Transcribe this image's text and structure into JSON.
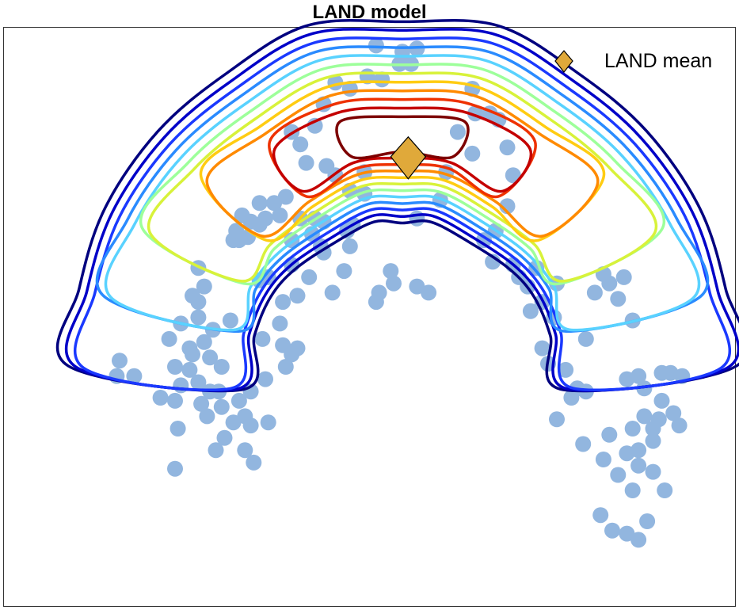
{
  "chart_data": {
    "type": "scatter",
    "title": "LAND model",
    "xlabel": "",
    "ylabel": "",
    "grid": false,
    "legend_position": "top-right",
    "legend": [
      {
        "label": "LAND mean",
        "marker": "diamond",
        "color": "#e0a93a"
      }
    ],
    "point_color": "#92b6df",
    "mean": {
      "x": 0.02,
      "y": 0.48
    },
    "contour_colors": [
      "#00007f",
      "#0000c8",
      "#1a39ff",
      "#2a8bff",
      "#59d2ff",
      "#9dff9a",
      "#d8f23a",
      "#ffcc12",
      "#ff8a00",
      "#ee3100",
      "#c40000",
      "#7d0000"
    ],
    "points": [
      [
        -0.98,
        -0.23
      ],
      [
        -0.92,
        -0.23
      ],
      [
        -0.83,
        -0.3
      ],
      [
        -0.77,
        -0.4
      ],
      [
        -0.78,
        -0.31
      ],
      [
        -0.76,
        -0.26
      ],
      [
        -0.73,
        -0.21
      ],
      [
        -0.7,
        -0.25
      ],
      [
        -0.78,
        -0.2
      ],
      [
        -0.73,
        -0.14
      ],
      [
        -0.72,
        -0.16
      ],
      [
        -0.68,
        -0.12
      ],
      [
        -0.66,
        -0.17
      ],
      [
        -0.62,
        -0.2
      ],
      [
        -0.65,
        -0.08
      ],
      [
        -0.8,
        -0.11
      ],
      [
        -0.76,
        -0.06
      ],
      [
        -0.7,
        -0.04
      ],
      [
        -0.66,
        -0.28
      ],
      [
        -0.62,
        -0.33
      ],
      [
        -0.67,
        -0.36
      ],
      [
        -0.69,
        -0.32
      ],
      [
        -0.63,
        -0.28
      ],
      [
        -0.56,
        -0.31
      ],
      [
        -0.52,
        -0.28
      ],
      [
        -0.54,
        -0.36
      ],
      [
        -0.58,
        -0.38
      ],
      [
        -0.52,
        -0.39
      ],
      [
        -0.46,
        -0.38
      ],
      [
        -0.47,
        -0.24
      ],
      [
        -0.4,
        -0.2
      ],
      [
        -0.38,
        -0.16
      ],
      [
        -0.36,
        -0.14
      ],
      [
        -0.41,
        -0.13
      ],
      [
        -0.48,
        -0.11
      ],
      [
        -0.42,
        -0.06
      ],
      [
        -0.59,
        -0.05
      ],
      [
        -0.7,
        0.01
      ],
      [
        -0.72,
        0.03
      ],
      [
        -0.68,
        0.06
      ],
      [
        -0.7,
        0.12
      ],
      [
        -0.58,
        0.21
      ],
      [
        -0.56,
        0.21
      ],
      [
        -0.52,
        0.27
      ],
      [
        -0.49,
        0.26
      ],
      [
        -0.47,
        0.28
      ],
      [
        -0.49,
        0.33
      ],
      [
        -0.55,
        0.29
      ],
      [
        -0.57,
        0.24
      ],
      [
        -0.53,
        0.22
      ],
      [
        -0.42,
        0.29
      ],
      [
        -0.44,
        0.33
      ],
      [
        -0.4,
        0.35
      ],
      [
        -0.38,
        0.21
      ],
      [
        -0.35,
        0.28
      ],
      [
        -0.3,
        0.28
      ],
      [
        -0.27,
        0.27
      ],
      [
        -0.31,
        0.23
      ],
      [
        -0.28,
        0.19
      ],
      [
        -0.38,
        0.13
      ],
      [
        -0.46,
        0.09
      ],
      [
        -0.49,
        0.08
      ],
      [
        -0.41,
        0.01
      ],
      [
        -0.36,
        0.03
      ],
      [
        -0.32,
        0.09
      ],
      [
        -0.24,
        0.04
      ],
      [
        -0.2,
        0.11
      ],
      [
        -0.18,
        0.19
      ],
      [
        -0.17,
        0.26
      ],
      [
        -0.18,
        0.37
      ],
      [
        -0.23,
        0.42
      ],
      [
        -0.26,
        0.45
      ],
      [
        -0.33,
        0.46
      ],
      [
        -0.35,
        0.52
      ],
      [
        -0.38,
        0.56
      ],
      [
        -0.3,
        0.58
      ],
      [
        -0.27,
        0.65
      ],
      [
        -0.23,
        0.72
      ],
      [
        -0.18,
        0.7
      ],
      [
        -0.12,
        0.74
      ],
      [
        -0.09,
        0.84
      ],
      [
        -0.07,
        0.73
      ],
      [
        -0.01,
        0.78
      ],
      [
        0.0,
        0.82
      ],
      [
        0.03,
        0.78
      ],
      [
        0.05,
        0.83
      ],
      [
        -0.13,
        0.43
      ],
      [
        -0.13,
        0.36
      ],
      [
        -0.19,
        0.24
      ],
      [
        -0.27,
        0.17
      ],
      [
        -0.08,
        0.04
      ],
      [
        -0.03,
        0.07
      ],
      [
        0.09,
        0.04
      ],
      [
        0.05,
        0.28
      ],
      [
        0.13,
        0.34
      ],
      [
        0.15,
        0.43
      ],
      [
        0.24,
        0.49
      ],
      [
        0.19,
        0.56
      ],
      [
        0.25,
        0.62
      ],
      [
        0.24,
        0.7
      ],
      [
        0.33,
        0.6
      ],
      [
        0.3,
        0.62
      ],
      [
        0.36,
        0.51
      ],
      [
        0.38,
        0.42
      ],
      [
        0.36,
        0.32
      ],
      [
        0.32,
        0.24
      ],
      [
        0.28,
        0.21
      ],
      [
        0.31,
        0.14
      ],
      [
        0.38,
        0.13
      ],
      [
        0.4,
        0.09
      ],
      [
        0.43,
        0.06
      ],
      [
        0.46,
        0.12
      ],
      [
        0.53,
        0.07
      ],
      [
        0.48,
        0.01
      ],
      [
        0.44,
        -0.02
      ],
      [
        0.52,
        -0.04
      ],
      [
        0.48,
        -0.14
      ],
      [
        0.5,
        -0.19
      ],
      [
        0.56,
        -0.21
      ],
      [
        0.6,
        -0.27
      ],
      [
        0.63,
        -0.28
      ],
      [
        0.58,
        -0.3
      ],
      [
        0.63,
        -0.11
      ],
      [
        0.66,
        0.04
      ],
      [
        0.69,
        0.1
      ],
      [
        0.71,
        0.07
      ],
      [
        0.76,
        0.09
      ],
      [
        0.74,
        0.02
      ],
      [
        0.79,
        -0.05
      ],
      [
        0.77,
        -0.24
      ],
      [
        0.81,
        -0.23
      ],
      [
        0.83,
        -0.27
      ],
      [
        0.89,
        -0.22
      ],
      [
        0.92,
        -0.22
      ],
      [
        0.96,
        -0.23
      ],
      [
        0.89,
        -0.31
      ],
      [
        0.88,
        -0.37
      ],
      [
        0.83,
        -0.36
      ],
      [
        0.79,
        -0.4
      ],
      [
        0.86,
        -0.44
      ],
      [
        0.81,
        -0.47
      ],
      [
        0.77,
        -0.48
      ],
      [
        0.71,
        -0.42
      ],
      [
        0.69,
        -0.5
      ],
      [
        0.81,
        -0.52
      ],
      [
        0.86,
        -0.4
      ],
      [
        0.93,
        -0.35
      ],
      [
        0.95,
        -0.39
      ],
      [
        0.79,
        -0.6
      ],
      [
        0.74,
        -0.55
      ],
      [
        0.68,
        -0.68
      ],
      [
        0.72,
        -0.73
      ],
      [
        0.84,
        -0.7
      ],
      [
        0.77,
        -0.74
      ],
      [
        0.81,
        -0.76
      ],
      [
        -0.97,
        -0.18
      ],
      [
        -0.61,
        -0.43
      ],
      [
        -0.54,
        -0.47
      ],
      [
        -0.51,
        -0.51
      ],
      [
        -0.78,
        -0.53
      ],
      [
        -0.64,
        -0.47
      ],
      [
        0.53,
        -0.37
      ],
      [
        0.62,
        -0.45
      ],
      [
        0.86,
        -0.54
      ],
      [
        0.9,
        -0.6
      ],
      [
        -0.09,
        0.01
      ],
      [
        0.05,
        0.06
      ],
      [
        -0.04,
        0.11
      ]
    ]
  }
}
